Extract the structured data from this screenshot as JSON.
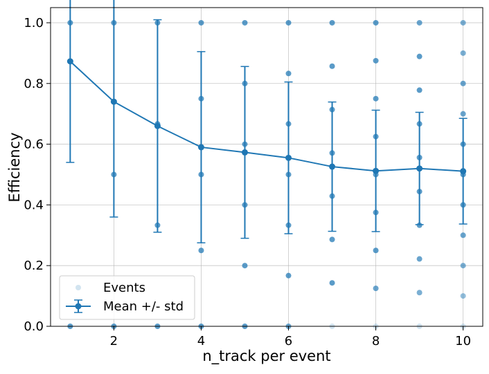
{
  "chart_data": {
    "type": "scatter",
    "title": "",
    "xlabel": "n_track per event",
    "ylabel": "Efficiency",
    "xlim": [
      0.55,
      10.45
    ],
    "ylim": [
      0.0,
      1.05
    ],
    "xticks": [
      2,
      4,
      6,
      8,
      10
    ],
    "xtick_labels": [
      "2",
      "4",
      "6",
      "8",
      "10"
    ],
    "yticks": [
      0.0,
      0.2,
      0.4,
      0.6,
      0.8,
      1.0
    ],
    "ytick_labels": [
      "0.0",
      "0.2",
      "0.4",
      "0.6",
      "0.8",
      "1.0"
    ],
    "grid": true,
    "legend_position": "lower-left",
    "colors": {
      "series": "#1f77b4",
      "grid": "#b0b0b0",
      "axes": "#000000"
    },
    "series": [
      {
        "name": "Events",
        "kind": "scatter",
        "alpha": 0.2,
        "points": {
          "1": [
            0,
            1
          ],
          "2": [
            0,
            0.5,
            1
          ],
          "3": [
            0,
            0.333,
            0.667,
            1
          ],
          "4": [
            0,
            0.25,
            0.5,
            0.75,
            1
          ],
          "5": [
            0,
            0.2,
            0.4,
            0.6,
            0.8,
            1
          ],
          "6": [
            0,
            0.167,
            0.333,
            0.5,
            0.667,
            0.833,
            1
          ],
          "7": [
            0,
            0.143,
            0.286,
            0.429,
            0.571,
            0.714,
            0.857,
            1
          ],
          "8": [
            0,
            0.125,
            0.25,
            0.375,
            0.5,
            0.625,
            0.75,
            0.875,
            1
          ],
          "9": [
            0,
            0.111,
            0.222,
            0.333,
            0.444,
            0.556,
            0.667,
            0.778,
            0.889,
            1
          ],
          "10": [
            0,
            0.1,
            0.2,
            0.3,
            0.4,
            0.5,
            0.6,
            0.7,
            0.8,
            0.9,
            1
          ]
        },
        "repeat_weight": {
          "1": [
            6,
            6
          ],
          "2": [
            6,
            6,
            6
          ],
          "3": [
            6,
            6,
            6,
            6
          ],
          "4": [
            6,
            6,
            6,
            6,
            6
          ],
          "5": [
            6,
            6,
            6,
            6,
            6,
            6
          ],
          "6": [
            5,
            6,
            6,
            6,
            6,
            6,
            6
          ],
          "7": [
            1,
            6,
            6,
            6,
            6,
            6,
            6,
            6
          ],
          "8": [
            1,
            5,
            6,
            6,
            6,
            6,
            6,
            6,
            6
          ],
          "9": [
            1,
            4,
            5,
            6,
            6,
            6,
            6,
            6,
            6,
            5
          ],
          "10": [
            1,
            3,
            4,
            5,
            6,
            6,
            6,
            5,
            5,
            4,
            4
          ]
        }
      },
      {
        "name": "Mean +/- std",
        "kind": "errorbar",
        "x": [
          1,
          2,
          3,
          4,
          5,
          6,
          7,
          8,
          9,
          10
        ],
        "y": [
          0.873,
          0.74,
          0.66,
          0.59,
          0.573,
          0.555,
          0.526,
          0.512,
          0.52,
          0.511
        ],
        "yerr": [
          0.333,
          0.38,
          0.35,
          0.315,
          0.283,
          0.25,
          0.213,
          0.2,
          0.185,
          0.174
        ]
      }
    ]
  }
}
